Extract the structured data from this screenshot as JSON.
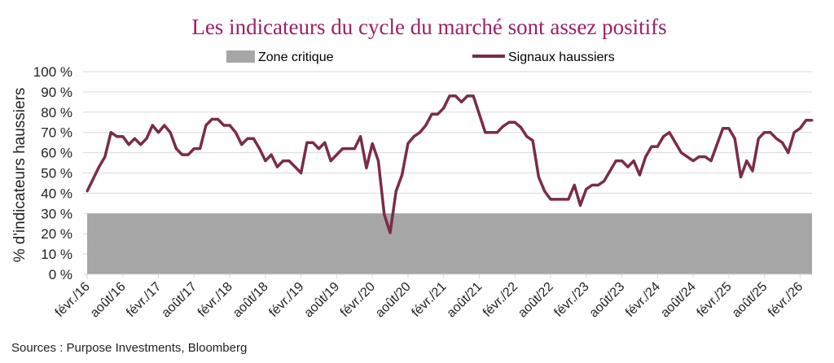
{
  "chart_data": {
    "type": "line",
    "title": "Les indicateurs du cycle du marché sont assez positifs",
    "ylabel": "% d'indicateurs haussiers",
    "xlabel": "",
    "ylim": [
      0,
      100
    ],
    "y_ticks": [
      "0 %",
      "10 %",
      "20 %",
      "30 %",
      "40 %",
      "50 %",
      "60 %",
      "70 %",
      "80 %",
      "90 %",
      "100 %"
    ],
    "x_tick_labels": [
      "févr./16",
      "août/16",
      "févr./17",
      "août/17",
      "févr./18",
      "août/18",
      "févr./19",
      "août/19",
      "févr./20",
      "août/20",
      "févr./21",
      "août/21",
      "févr./22",
      "août/22",
      "févr./23",
      "août/23",
      "févr./24",
      "août/24",
      "févr./25",
      "août/25",
      "févr./26"
    ],
    "grid": "horizontal",
    "legend_position": "top",
    "source": "Sources : Purpose Investments, Bloomberg",
    "bands": [
      {
        "name": "Zone critique",
        "from": 0,
        "to": 30,
        "color": "#a6a6a6"
      }
    ],
    "series": [
      {
        "name": "Signaux haussiers",
        "color": "#7a2c4a",
        "x": [
          "2016-02",
          "2016-03",
          "2016-04",
          "2016-05",
          "2016-06",
          "2016-07",
          "2016-08",
          "2016-09",
          "2016-10",
          "2016-11",
          "2016-12",
          "2017-01",
          "2017-02",
          "2017-03",
          "2017-04",
          "2017-05",
          "2017-06",
          "2017-07",
          "2017-08",
          "2017-09",
          "2017-10",
          "2017-11",
          "2017-12",
          "2018-01",
          "2018-02",
          "2018-03",
          "2018-04",
          "2018-05",
          "2018-06",
          "2018-07",
          "2018-08",
          "2018-09",
          "2018-10",
          "2018-11",
          "2018-12",
          "2019-01",
          "2019-02",
          "2019-03",
          "2019-04",
          "2019-05",
          "2019-06",
          "2019-07",
          "2019-08",
          "2019-09",
          "2019-10",
          "2019-11",
          "2019-12",
          "2020-01",
          "2020-02",
          "2020-03",
          "2020-04",
          "2020-05",
          "2020-06",
          "2020-07",
          "2020-08",
          "2020-09",
          "2020-10",
          "2020-11",
          "2020-12",
          "2021-01",
          "2021-02",
          "2021-03",
          "2021-04",
          "2021-05",
          "2021-06",
          "2021-07",
          "2021-08",
          "2021-09",
          "2021-10",
          "2021-11",
          "2021-12",
          "2022-01",
          "2022-02",
          "2022-03",
          "2022-04",
          "2022-05",
          "2022-06",
          "2022-07",
          "2022-08",
          "2022-09",
          "2022-10",
          "2022-11",
          "2022-12",
          "2023-01",
          "2023-02",
          "2023-03",
          "2023-04",
          "2023-05",
          "2023-06",
          "2023-07",
          "2023-08",
          "2023-09",
          "2023-10",
          "2023-11",
          "2023-12",
          "2024-01",
          "2024-02",
          "2024-03",
          "2024-04",
          "2024-05",
          "2024-06",
          "2024-07",
          "2024-08",
          "2024-09",
          "2024-10",
          "2024-11",
          "2024-12",
          "2025-01",
          "2025-02",
          "2025-03",
          "2025-04",
          "2025-05",
          "2025-06",
          "2025-07",
          "2025-08",
          "2025-09",
          "2025-10",
          "2025-11",
          "2025-12",
          "2026-01",
          "2026-02",
          "2026-03",
          "2026-04"
        ],
        "values": [
          41,
          47,
          53,
          58,
          70,
          68,
          68,
          64,
          67,
          64,
          67,
          73.5,
          70,
          73.5,
          70,
          62,
          59,
          59,
          62,
          62,
          73.5,
          76.5,
          76.5,
          73.5,
          73.5,
          70,
          64,
          67,
          67,
          62,
          56,
          59,
          53,
          56,
          56,
          53,
          50,
          65,
          65,
          62,
          65,
          56,
          59,
          62,
          62,
          62,
          68,
          52.5,
          64.5,
          56,
          29.5,
          20.5,
          41,
          49,
          64.5,
          68,
          70,
          73.5,
          79,
          79,
          82,
          88,
          88,
          85,
          88,
          88,
          79,
          70,
          70,
          70,
          73,
          75,
          75,
          72.5,
          68,
          66,
          48,
          41,
          37,
          37,
          37,
          37,
          44,
          34,
          42,
          44,
          44,
          46,
          51,
          56,
          56,
          53,
          56,
          49,
          58,
          63,
          63,
          68,
          70,
          65,
          60,
          58,
          56,
          58,
          58,
          56,
          64,
          72,
          72,
          67,
          48,
          56,
          51,
          67,
          70,
          70,
          67,
          65,
          60,
          70,
          72,
          76,
          76
        ]
      }
    ]
  }
}
